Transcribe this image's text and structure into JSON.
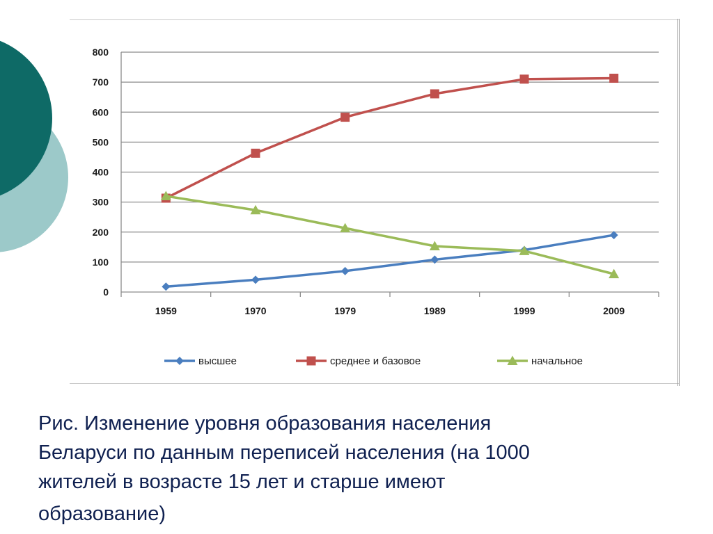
{
  "colors": {
    "circle_dark": "#0e6a66",
    "circle_light": "#9cc9c9",
    "grid": "#8c8c8c",
    "axis_text": "#1a1a1a",
    "caption_text": "#0f2050"
  },
  "caption": {
    "line1": "Рис. Изменение уровня образования населения",
    "line2": "Беларуси по данным переписей населения (на 1000",
    "line3": "жителей в возрасте 15 лет и старше имеют",
    "line4": "образование)"
  },
  "chart_data": {
    "type": "line",
    "title": "",
    "xlabel": "",
    "ylabel": "",
    "categories": [
      "1959",
      "1970",
      "1979",
      "1989",
      "1999",
      "2009"
    ],
    "ylim": [
      0,
      800
    ],
    "yticks": [
      0,
      100,
      200,
      300,
      400,
      500,
      600,
      700,
      800
    ],
    "grid": true,
    "legend_position": "bottom",
    "series": [
      {
        "name": "высшее",
        "values": [
          18,
          41,
          70,
          108,
          140,
          190
        ],
        "color": "#4a7ebf",
        "marker": "diamond"
      },
      {
        "name": "среднее и базовое",
        "values": [
          313,
          463,
          583,
          661,
          710,
          713
        ],
        "color": "#c0504d",
        "marker": "square"
      },
      {
        "name": "начальное",
        "values": [
          320,
          273,
          213,
          153,
          137,
          60
        ],
        "color": "#9bbb59",
        "marker": "triangle"
      }
    ]
  }
}
